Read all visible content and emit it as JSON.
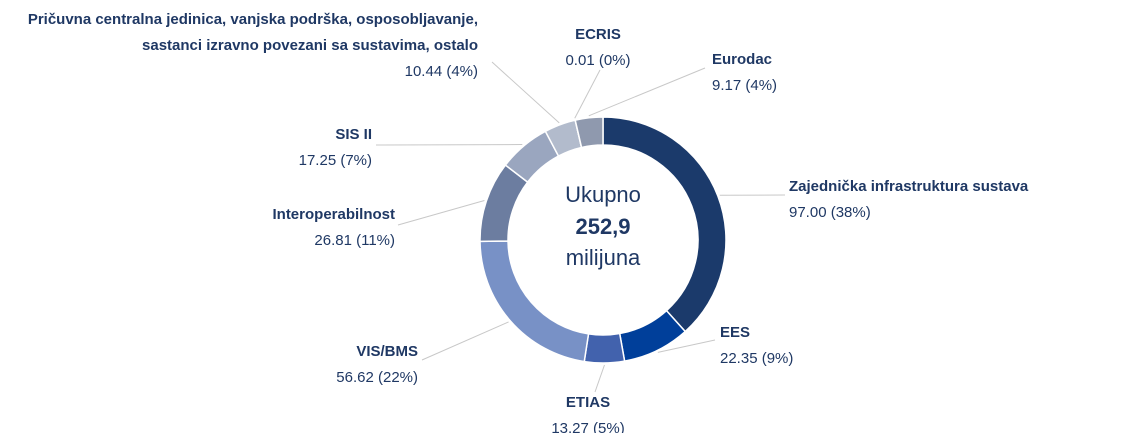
{
  "chart_data": {
    "type": "donut",
    "center_label": [
      "Ukupno",
      "252,9",
      "milijuna"
    ],
    "categories": [
      "Zajednička infrastruktura sustava",
      "EES",
      "ETIAS",
      "VIS/BMS",
      "Interoperabilnost",
      "SIS II",
      "Pričuvna centralna jedinica, vanjska podrška, osposobljavanje, sastanci izravno povezani sa sustavima, ostalo",
      "ECRIS",
      "Eurodac"
    ],
    "values": [
      97.0,
      22.35,
      13.27,
      56.62,
      26.81,
      17.25,
      10.44,
      0.01,
      9.17
    ],
    "value_labels": [
      "97.00 (38%)",
      "22.35 (9%)",
      "13.27 (5%)",
      "56.62 (22%)",
      "26.81 (11%)",
      "17.25 (7%)",
      "10.44 (4%)",
      "0.01 (0%)",
      "9.17 (4%)"
    ],
    "colors": [
      "#1b3a6b",
      "#003f9a",
      "#4262ad",
      "#7891c6",
      "#6c7da0",
      "#9aa6bf",
      "#b2bbcc",
      "#c9cfda",
      "#8f99ae"
    ]
  }
}
